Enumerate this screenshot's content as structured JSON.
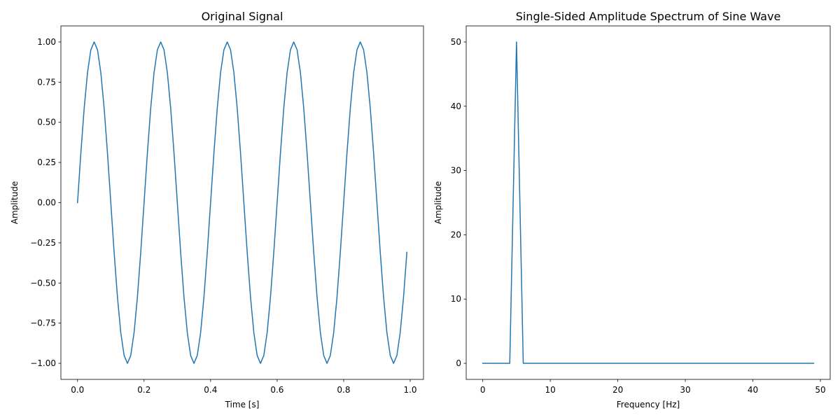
{
  "chart_data": [
    {
      "type": "line",
      "title": "Original Signal",
      "xlabel": "Time [s]",
      "ylabel": "Amplitude",
      "xlim": [
        -0.05,
        1.04
      ],
      "ylim": [
        -1.1,
        1.1
      ],
      "xticks": [
        0.0,
        0.2,
        0.4,
        0.6,
        0.8,
        1.0
      ],
      "xtick_labels": [
        "0.0",
        "0.2",
        "0.4",
        "0.6",
        "0.8",
        "1.0"
      ],
      "yticks": [
        -1.0,
        -0.75,
        -0.5,
        -0.25,
        0.0,
        0.25,
        0.5,
        0.75,
        1.0
      ],
      "ytick_labels": [
        "−1.00",
        "−0.75",
        "−0.50",
        "−0.25",
        "0.00",
        "0.25",
        "0.50",
        "0.75",
        "1.00"
      ],
      "grid": false,
      "line_color": "#1f77b4",
      "x": [
        0.0,
        0.01,
        0.02,
        0.03,
        0.04,
        0.05,
        0.06,
        0.07,
        0.08,
        0.09,
        0.1,
        0.11,
        0.12,
        0.13,
        0.14,
        0.15,
        0.16,
        0.17,
        0.18,
        0.19,
        0.2,
        0.21,
        0.22,
        0.23,
        0.24,
        0.25,
        0.26,
        0.27,
        0.28,
        0.29,
        0.3,
        0.31,
        0.32,
        0.33,
        0.34,
        0.35,
        0.36,
        0.37,
        0.38,
        0.39,
        0.4,
        0.41,
        0.42,
        0.43,
        0.44,
        0.45,
        0.46,
        0.47,
        0.48,
        0.49,
        0.5,
        0.51,
        0.52,
        0.53,
        0.54,
        0.55,
        0.56,
        0.57,
        0.58,
        0.59,
        0.6,
        0.61,
        0.62,
        0.63,
        0.64,
        0.65,
        0.66,
        0.67,
        0.68,
        0.69,
        0.7,
        0.71,
        0.72,
        0.73,
        0.74,
        0.75,
        0.76,
        0.77,
        0.78,
        0.79,
        0.8,
        0.81,
        0.82,
        0.83,
        0.84,
        0.85,
        0.86,
        0.87,
        0.88,
        0.89,
        0.9,
        0.91,
        0.92,
        0.93,
        0.94,
        0.95,
        0.96,
        0.97,
        0.98,
        0.99
      ],
      "y": [
        0.0,
        0.309,
        0.588,
        0.809,
        0.951,
        1.0,
        0.951,
        0.809,
        0.588,
        0.309,
        0.0,
        -0.309,
        -0.588,
        -0.809,
        -0.951,
        -1.0,
        -0.951,
        -0.809,
        -0.588,
        -0.309,
        0.0,
        0.309,
        0.588,
        0.809,
        0.951,
        1.0,
        0.951,
        0.809,
        0.588,
        0.309,
        0.0,
        -0.309,
        -0.588,
        -0.809,
        -0.951,
        -1.0,
        -0.951,
        -0.809,
        -0.588,
        -0.309,
        0.0,
        0.309,
        0.588,
        0.809,
        0.951,
        1.0,
        0.951,
        0.809,
        0.588,
        0.309,
        0.0,
        -0.309,
        -0.588,
        -0.809,
        -0.951,
        -1.0,
        -0.951,
        -0.809,
        -0.588,
        -0.309,
        0.0,
        0.309,
        0.588,
        0.809,
        0.951,
        1.0,
        0.951,
        0.809,
        0.588,
        0.309,
        0.0,
        -0.309,
        -0.588,
        -0.809,
        -0.951,
        -1.0,
        -0.951,
        -0.809,
        -0.588,
        -0.309,
        0.0,
        0.309,
        0.588,
        0.809,
        0.951,
        1.0,
        0.951,
        0.809,
        0.588,
        0.309,
        0.0,
        -0.309,
        -0.588,
        -0.809,
        -0.951,
        -1.0,
        -0.951,
        -0.809,
        -0.588,
        -0.309
      ]
    },
    {
      "type": "line",
      "title": "Single-Sided Amplitude Spectrum of Sine Wave",
      "xlabel": "Frequency [Hz]",
      "ylabel": "Amplitude",
      "xlim": [
        -2.45,
        51.45
      ],
      "ylim": [
        -2.5,
        52.5
      ],
      "xticks": [
        0,
        10,
        20,
        30,
        40,
        50
      ],
      "xtick_labels": [
        "0",
        "10",
        "20",
        "30",
        "40",
        "50"
      ],
      "yticks": [
        0,
        10,
        20,
        30,
        40,
        50
      ],
      "ytick_labels": [
        "0",
        "10",
        "20",
        "30",
        "40",
        "50"
      ],
      "grid": false,
      "line_color": "#1f77b4",
      "x": [
        0,
        1,
        2,
        3,
        4,
        5,
        6,
        7,
        8,
        9,
        10,
        11,
        12,
        13,
        14,
        15,
        16,
        17,
        18,
        19,
        20,
        21,
        22,
        23,
        24,
        25,
        26,
        27,
        28,
        29,
        30,
        31,
        32,
        33,
        34,
        35,
        36,
        37,
        38,
        39,
        40,
        41,
        42,
        43,
        44,
        45,
        46,
        47,
        48,
        49
      ],
      "y": [
        0,
        0,
        0,
        0,
        0,
        50,
        0,
        0,
        0,
        0,
        0,
        0,
        0,
        0,
        0,
        0,
        0,
        0,
        0,
        0,
        0,
        0,
        0,
        0,
        0,
        0,
        0,
        0,
        0,
        0,
        0,
        0,
        0,
        0,
        0,
        0,
        0,
        0,
        0,
        0,
        0,
        0,
        0,
        0,
        0,
        0,
        0,
        0,
        0,
        0
      ]
    }
  ]
}
